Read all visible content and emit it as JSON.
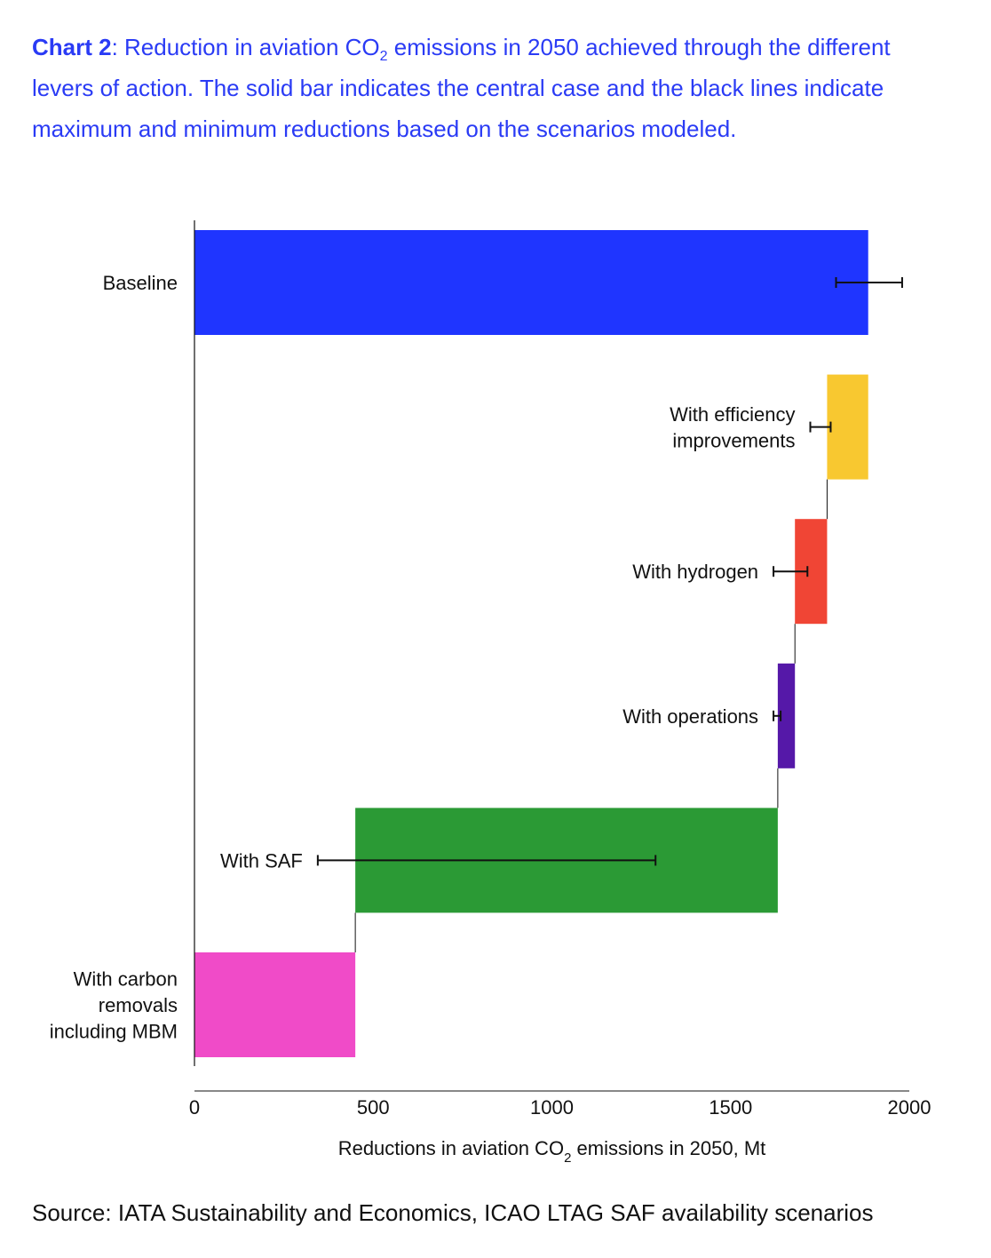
{
  "header": {
    "lead": "Chart 2",
    "text_pre": ": Reduction in aviation CO",
    "text_sub": "2",
    "text_post": " emissions in 2050 achieved through the different levers of action. The solid bar indicates the central case and the black lines indicate maximum and minimum reductions based on the scenarios modeled."
  },
  "source": "Source: IATA Sustainability and Economics, ICAO LTAG SAF availability scenarios",
  "chart_data": {
    "type": "bar",
    "orientation": "horizontal-waterfall",
    "categories": [
      "Baseline",
      "With efficiency improvements",
      "With hydrogen",
      "With operations",
      "With SAF",
      "With carbon removals including MBM"
    ],
    "category_lines": [
      [
        "Baseline"
      ],
      [
        "With efficiency",
        "improvements"
      ],
      [
        "With hydrogen"
      ],
      [
        "With operations"
      ],
      [
        "With SAF"
      ],
      [
        "With carbon",
        "removals",
        "including MBM"
      ]
    ],
    "bars": [
      {
        "start": 0,
        "end": 1885,
        "color": "#1f35ff",
        "error": [
          1795,
          1980
        ]
      },
      {
        "start": 1770,
        "end": 1885,
        "color": "#f8c830",
        "error": [
          1723,
          1780
        ]
      },
      {
        "start": 1680,
        "end": 1770,
        "color": "#f04535",
        "error": [
          1620,
          1715
        ]
      },
      {
        "start": 1632,
        "end": 1680,
        "color": "#5518a8",
        "error": [
          1620,
          1640
        ]
      },
      {
        "start": 450,
        "end": 1632,
        "color": "#2b9a35",
        "error": [
          345,
          1290
        ]
      },
      {
        "start": 0,
        "end": 450,
        "color": "#f04bc8",
        "error": null
      }
    ],
    "xlim": [
      0,
      2000
    ],
    "xticks": [
      0,
      500,
      1000,
      1500,
      2000
    ],
    "xlabel_pre": "Reductions in aviation CO",
    "xlabel_sub": "2",
    "xlabel_post": " emissions in 2050, Mt",
    "grid": false,
    "legend": "none"
  }
}
